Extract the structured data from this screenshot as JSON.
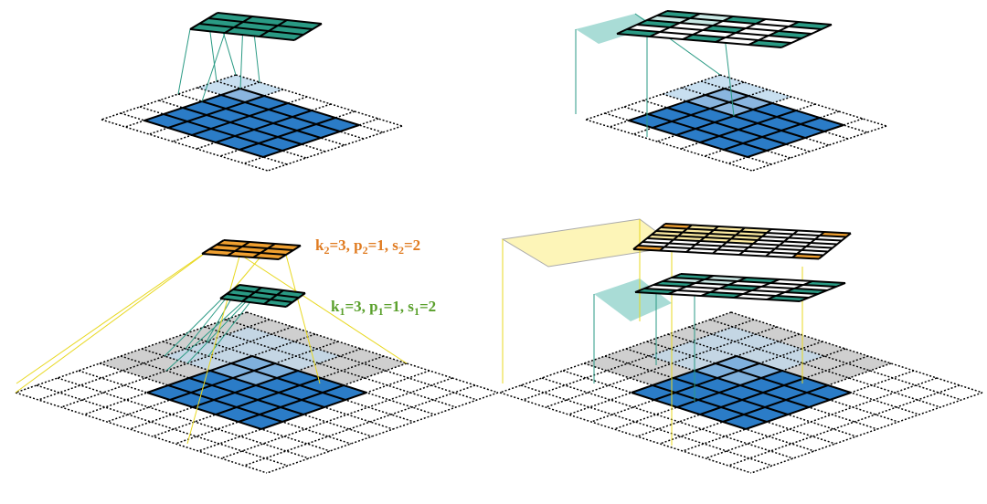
{
  "annotations": [
    {
      "color": "#e07b20",
      "parts": [
        {
          "text": "k"
        },
        {
          "sub": "2"
        },
        {
          "text": "=3, p"
        },
        {
          "sub": "2"
        },
        {
          "text": "=1, s"
        },
        {
          "sub": "2"
        },
        {
          "text": "=2"
        }
      ]
    },
    {
      "color": "#5aa02c",
      "parts": [
        {
          "text": "k"
        },
        {
          "sub": "1"
        },
        {
          "text": "=3, p"
        },
        {
          "sub": "1"
        },
        {
          "text": "=1, s"
        },
        {
          "sub": "1"
        },
        {
          "text": "=2"
        }
      ]
    }
  ]
}
